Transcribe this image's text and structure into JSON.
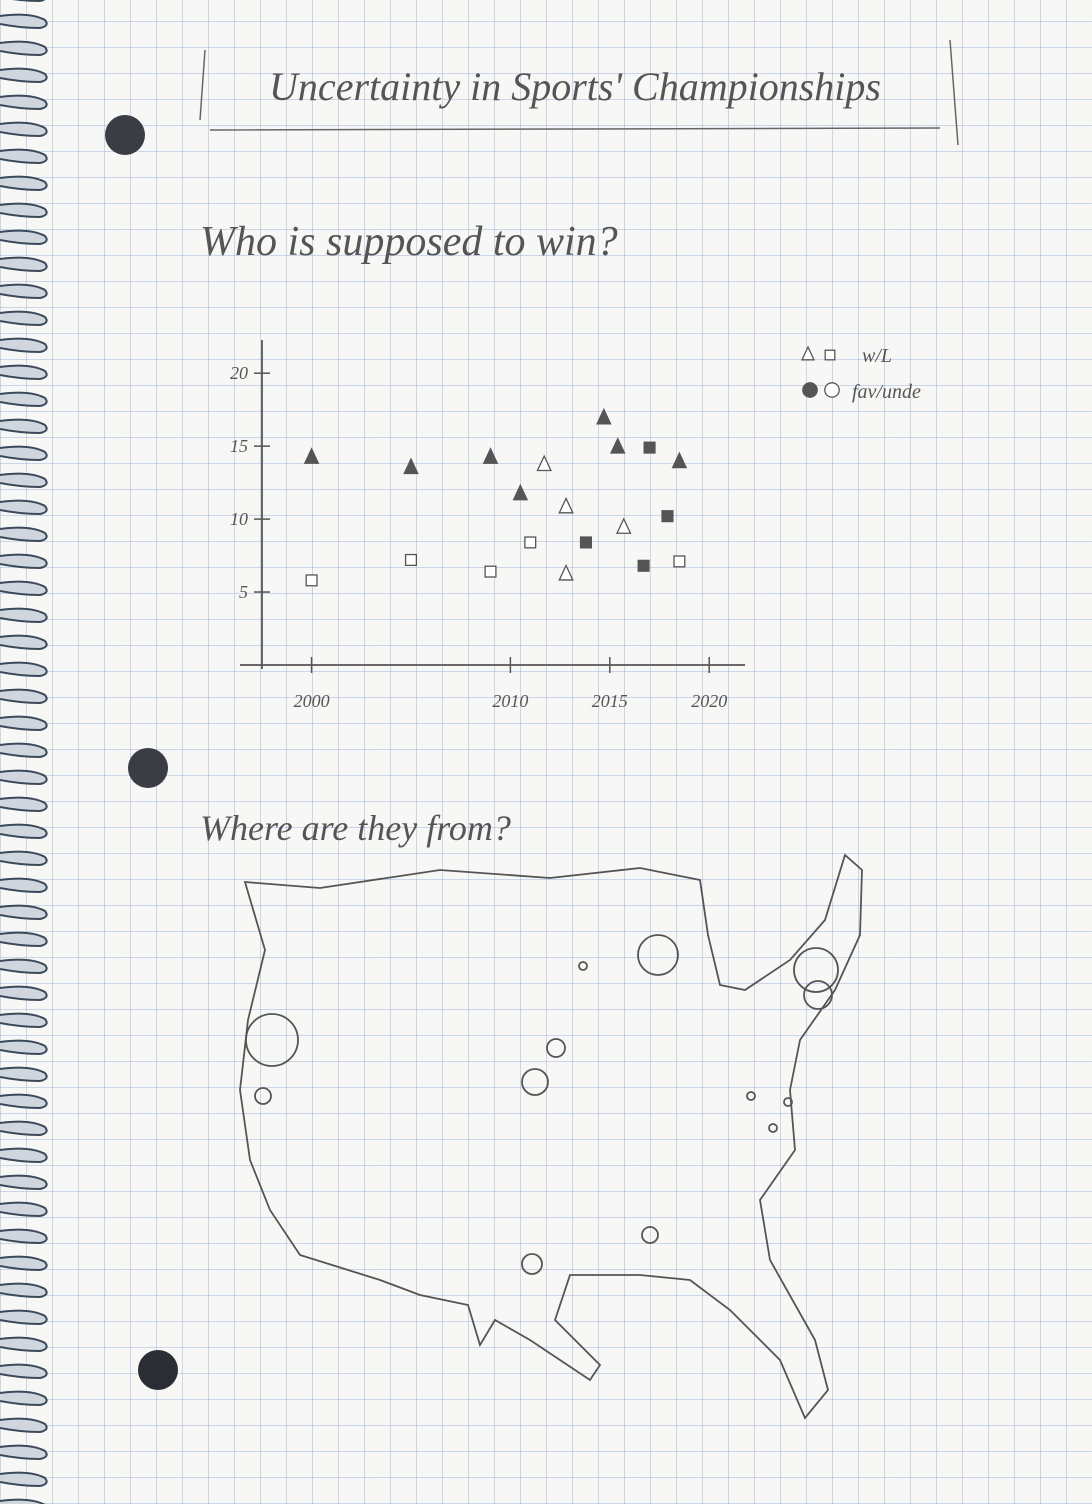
{
  "title": "Uncertainty in Sports' Championships",
  "chart_data": {
    "type": "scatter",
    "title": "Who is supposed to win?",
    "xlim": [
      1996.4,
      2021.8
    ],
    "xticks": [
      2000,
      2010,
      2015,
      2020
    ],
    "ylim": [
      0,
      22
    ],
    "yticks": [
      5,
      10,
      15,
      20
    ],
    "legend": [
      "w/L",
      "fav/unde"
    ],
    "color": "#555555",
    "series": [
      {
        "shape": "triangle",
        "filled": true,
        "x": [
          2000,
          2005,
          2009,
          2010.5,
          2014.7,
          2015.4,
          2018.5
        ],
        "values": [
          14.2,
          13.5,
          14.2,
          11.7,
          16.9,
          14.9,
          13.9
        ]
      },
      {
        "shape": "triangle",
        "filled": false,
        "x": [
          2011.7,
          2012.8,
          2012.8,
          2015.7
        ],
        "values": [
          13.7,
          10.8,
          6.2,
          9.4
        ]
      },
      {
        "shape": "square",
        "filled": true,
        "x": [
          2013.8,
          2016.7,
          2017,
          2017.9
        ],
        "values": [
          8.4,
          6.8,
          14.9,
          10.2
        ]
      },
      {
        "shape": "square",
        "filled": false,
        "x": [
          2000,
          2005,
          2009,
          2011,
          2018.5
        ],
        "values": [
          5.8,
          7.2,
          6.4,
          8.4,
          7.1
        ]
      }
    ]
  },
  "map": {
    "title": "Where are they from?"
  }
}
